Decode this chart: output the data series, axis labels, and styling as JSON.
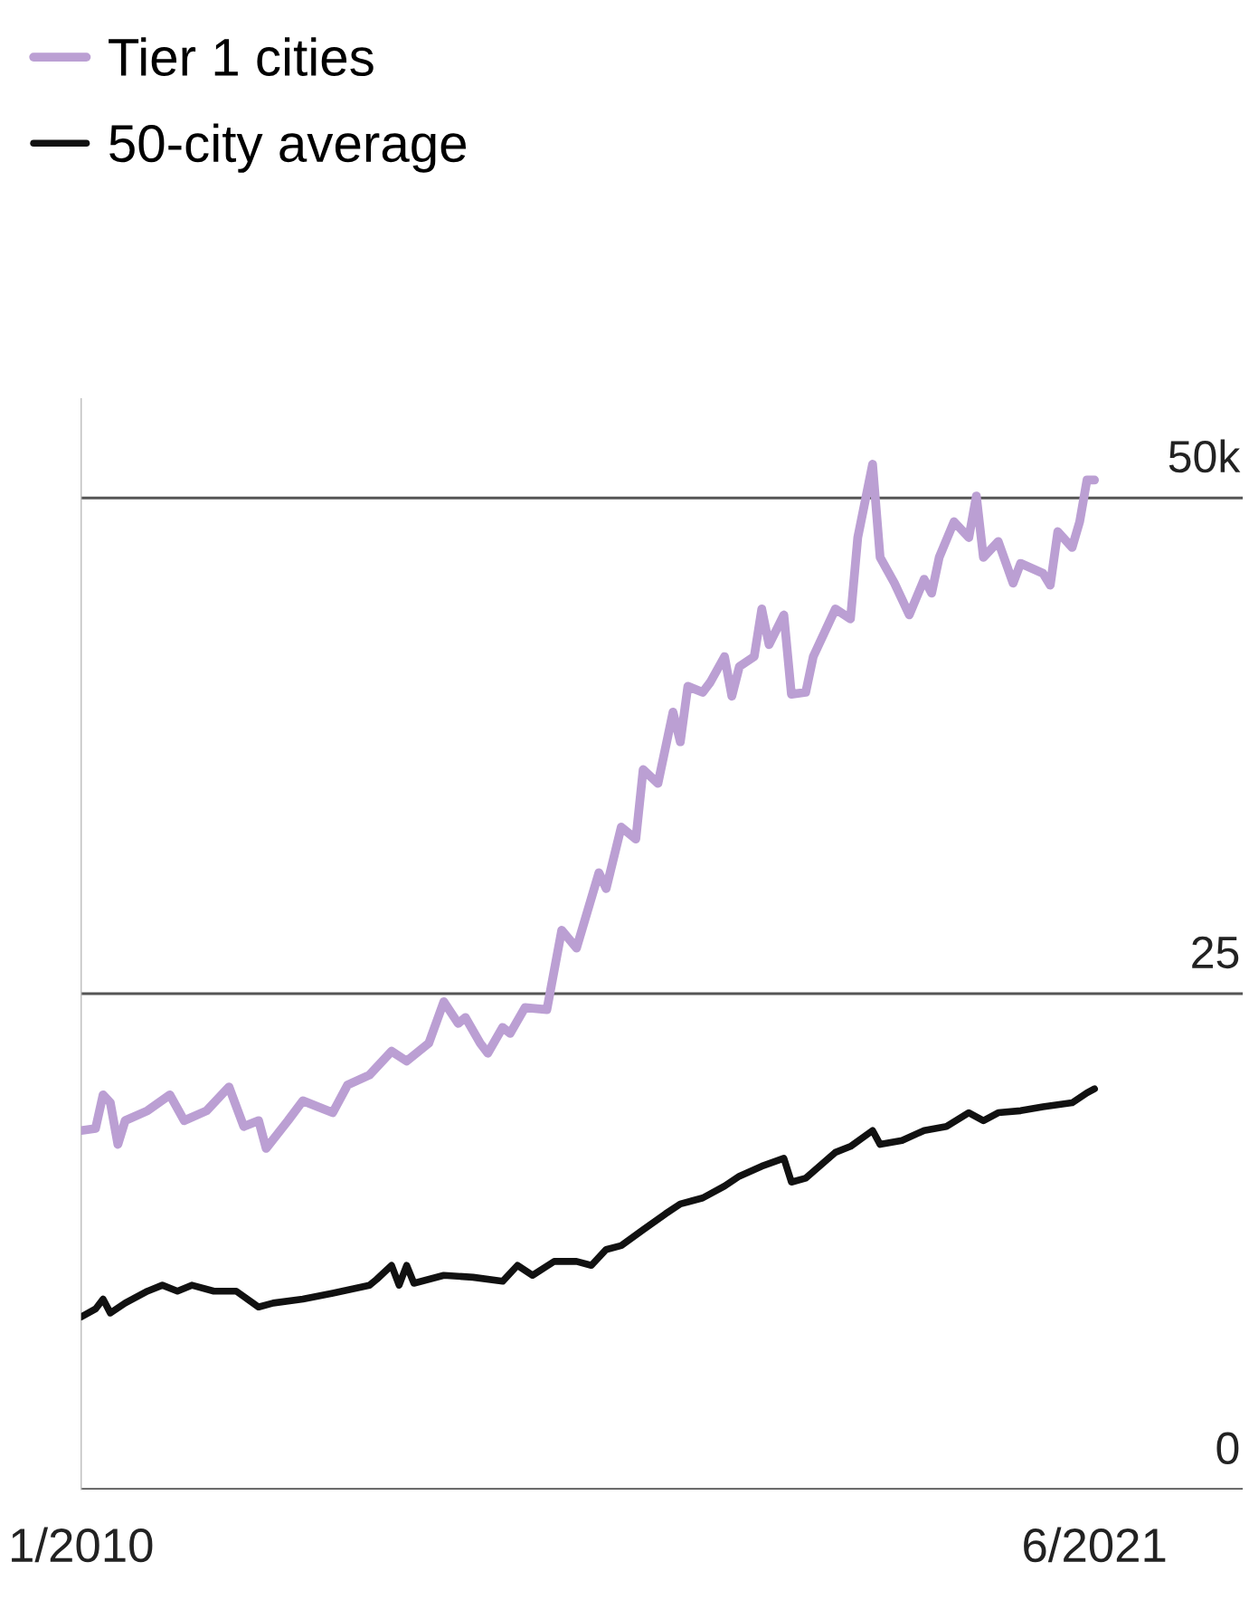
{
  "chart_data": {
    "type": "line",
    "series": [
      {
        "name": "Tier 1 cities",
        "color": "#bb9fd3",
        "x": [
          "2010-01",
          "2010-03",
          "2010-04",
          "2010-05",
          "2010-06",
          "2010-07",
          "2010-10",
          "2011-01",
          "2011-03",
          "2011-06",
          "2011-09",
          "2011-11",
          "2012-01",
          "2012-02",
          "2012-05",
          "2012-07",
          "2012-11",
          "2013-01",
          "2013-04",
          "2013-07",
          "2013-09",
          "2013-12",
          "2014-02",
          "2014-04",
          "2014-05",
          "2014-07",
          "2014-08",
          "2014-10",
          "2014-11",
          "2015-01",
          "2015-04",
          "2015-06",
          "2015-08",
          "2015-11",
          "2015-12",
          "2016-02",
          "2016-04",
          "2016-05",
          "2016-07",
          "2016-09",
          "2016-10",
          "2016-11",
          "2017-01",
          "2017-02",
          "2017-04",
          "2017-05",
          "2017-06",
          "2017-08",
          "2017-09",
          "2017-10",
          "2017-12",
          "2018-01",
          "2018-03",
          "2018-04",
          "2018-07",
          "2018-09",
          "2018-10",
          "2018-12",
          "2019-01",
          "2019-03",
          "2019-05",
          "2019-07",
          "2019-08",
          "2019-09",
          "2019-11",
          "2020-01",
          "2020-02",
          "2020-03",
          "2020-05",
          "2020-07",
          "2020-08",
          "2020-11",
          "2020-12",
          "2021-01",
          "2021-03",
          "2021-04",
          "2021-05",
          "2021-06"
        ],
        "values": [
          18.1,
          18.2,
          19.9,
          19.5,
          17.4,
          18.6,
          19.1,
          19.9,
          18.6,
          19.1,
          20.3,
          18.3,
          18.6,
          17.2,
          18.6,
          19.6,
          19.0,
          20.4,
          20.9,
          22.1,
          21.6,
          22.5,
          24.6,
          23.5,
          23.8,
          22.5,
          22.0,
          23.3,
          23.0,
          24.3,
          24.2,
          28.2,
          27.3,
          31.1,
          30.3,
          33.4,
          32.8,
          36.3,
          35.6,
          39.2,
          37.7,
          40.5,
          40.2,
          40.7,
          42.0,
          40.0,
          41.5,
          42.0,
          44.4,
          42.6,
          44.1,
          40.1,
          40.2,
          42.0,
          44.4,
          43.9,
          48.0,
          51.7,
          47.0,
          45.7,
          44.1,
          45.9,
          45.2,
          47.0,
          48.8,
          48.0,
          50.1,
          47.0,
          47.8,
          45.7,
          46.7,
          46.2,
          45.6,
          48.3,
          47.5,
          48.8,
          50.9,
          50.9
        ]
      },
      {
        "name": "50-city average",
        "color": "#111111",
        "x": [
          "2010-01",
          "2010-03",
          "2010-04",
          "2010-05",
          "2010-07",
          "2010-10",
          "2010-12",
          "2011-02",
          "2011-04",
          "2011-07",
          "2011-10",
          "2012-01",
          "2012-03",
          "2012-07",
          "2012-11",
          "2013-04",
          "2013-05",
          "2013-07",
          "2013-08",
          "2013-09",
          "2013-10",
          "2014-02",
          "2014-06",
          "2014-10",
          "2014-12",
          "2015-02",
          "2015-05",
          "2015-08",
          "2015-10",
          "2015-12",
          "2016-02",
          "2016-05",
          "2016-08",
          "2016-10",
          "2017-01",
          "2017-04",
          "2017-06",
          "2017-09",
          "2017-12",
          "2018-01",
          "2018-03",
          "2018-07",
          "2018-09",
          "2018-12",
          "2019-01",
          "2019-04",
          "2019-07",
          "2019-10",
          "2020-01",
          "2020-03",
          "2020-05",
          "2020-08",
          "2020-11",
          "2021-03",
          "2021-05",
          "2021-06"
        ],
        "values": [
          8.7,
          9.1,
          9.6,
          8.9,
          9.4,
          10.0,
          10.3,
          10.0,
          10.3,
          10.0,
          10.0,
          9.2,
          9.4,
          9.6,
          9.9,
          10.3,
          10.6,
          11.3,
          10.3,
          11.3,
          10.4,
          10.8,
          10.7,
          10.5,
          11.3,
          10.8,
          11.5,
          11.5,
          11.3,
          12.1,
          12.3,
          13.1,
          13.9,
          14.4,
          14.7,
          15.3,
          15.8,
          16.3,
          16.7,
          15.5,
          15.7,
          17.0,
          17.3,
          18.1,
          17.4,
          17.6,
          18.1,
          18.3,
          19.0,
          18.6,
          19.0,
          19.1,
          19.3,
          19.5,
          20.0,
          20.2
        ]
      }
    ],
    "xlim": [
      "2010-01",
      "2023-02"
    ],
    "xticks": [
      {
        "value": "2010-01",
        "label": "1/2010"
      },
      {
        "value": "2021-06",
        "label": "6/2021"
      }
    ],
    "ylim": [
      0,
      55
    ],
    "yticks": [
      0,
      25,
      {
        "value": 50,
        "label": "50k"
      }
    ],
    "grid": "y",
    "legend": "top left",
    "line_style": "solid",
    "marker": "none"
  }
}
